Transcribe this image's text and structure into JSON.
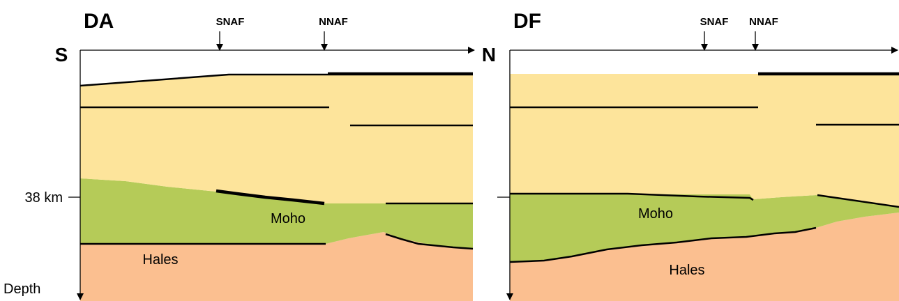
{
  "panels": [
    {
      "title": "DA",
      "faults": [
        "SNAF",
        "NNAF"
      ],
      "layers": [
        "Moho",
        "Hales"
      ]
    },
    {
      "title": "DF",
      "faults": [
        "SNAF",
        "NNAF"
      ],
      "layers": [
        "Moho",
        "Hales"
      ]
    }
  ],
  "axis": {
    "start": "S",
    "end": "N",
    "depth_marker": "38 km",
    "depth_label": "Depth"
  }
}
